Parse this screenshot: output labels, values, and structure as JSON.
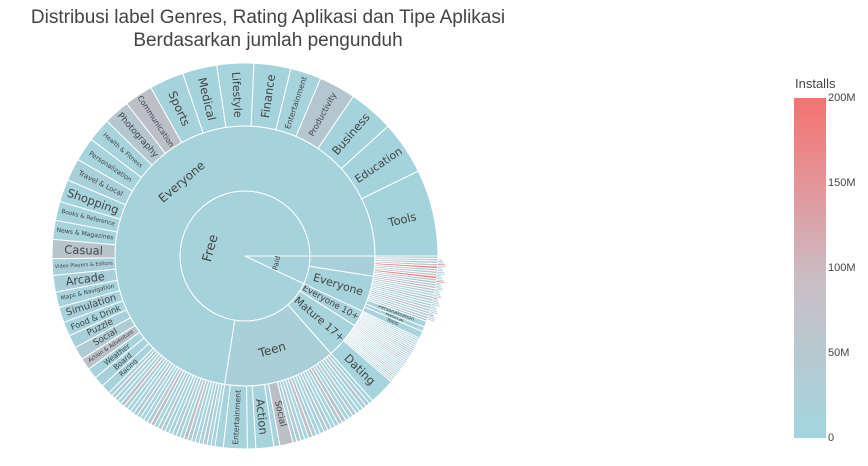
{
  "title_line1": "Distribusi label Genres, Rating Aplikasi dan Tipe Aplikasi",
  "title_line2": "Berdasarkan jumlah pengunduh",
  "colors": {
    "low": "#a3d5df",
    "mid": "#c0bcc4",
    "high": "#f87171"
  },
  "chart_data": {
    "type": "sunburst",
    "value_label": "Installs",
    "colorbar": {
      "title": "Installs",
      "range": [
        0,
        200000000
      ],
      "ticks": [
        "0",
        "50M",
        "100M",
        "150M",
        "200M"
      ]
    },
    "root": [
      {
        "name": "Free",
        "share": 0.93,
        "color": 0.06,
        "children": [
          {
            "name": "Everyone",
            "share": 0.725,
            "color": 0.06,
            "children": [
              {
                "name": "Tools",
                "share": 0.073,
                "color": 0.04
              },
              {
                "name": "Education",
                "share": 0.045,
                "color": 0.04
              },
              {
                "name": "Business",
                "share": 0.038,
                "color": 0.04
              },
              {
                "name": "Productivity",
                "share": 0.031,
                "color": 0.3
              },
              {
                "name": "Entertainment",
                "share": 0.026,
                "color": 0.05
              },
              {
                "name": "Finance",
                "share": 0.031,
                "color": 0.04
              },
              {
                "name": "Lifestyle",
                "share": 0.031,
                "color": 0.05
              },
              {
                "name": "Medical",
                "share": 0.029,
                "color": 0.04
              },
              {
                "name": "Sports",
                "share": 0.029,
                "color": 0.06
              },
              {
                "name": "Communication",
                "share": 0.024,
                "color": 0.45
              },
              {
                "name": "Photography",
                "share": 0.022,
                "color": 0.3
              },
              {
                "name": "Health & Fitness",
                "share": 0.02,
                "color": 0.05
              },
              {
                "name": "Personalization",
                "share": 0.02,
                "color": 0.05
              },
              {
                "name": "Travel & Local",
                "share": 0.019,
                "color": 0.1
              },
              {
                "name": "Shopping",
                "share": 0.019,
                "color": 0.05
              },
              {
                "name": "Books & Reference",
                "share": 0.016,
                "color": 0.05
              },
              {
                "name": "News & Magazines",
                "share": 0.016,
                "color": 0.05
              },
              {
                "name": "Casual",
                "share": 0.016,
                "color": 0.35
              },
              {
                "name": "Video Players & Editors",
                "share": 0.014,
                "color": 0.1
              },
              {
                "name": "Arcade",
                "share": 0.014,
                "color": 0.1
              },
              {
                "name": "Maps & Navigation",
                "share": 0.013,
                "color": 0.05
              },
              {
                "name": "Simulation",
                "share": 0.013,
                "color": 0.08
              },
              {
                "name": "Food & Drink",
                "share": 0.012,
                "color": 0.05
              },
              {
                "name": "Puzzle",
                "share": 0.011,
                "color": 0.1
              },
              {
                "name": "Social",
                "share": 0.011,
                "color": 0.2
              },
              {
                "name": "Action & Adventure",
                "share": 0.01,
                "color": 0.4
              },
              {
                "name": "Weather",
                "share": 0.009,
                "color": 0.05
              },
              {
                "name": "Board",
                "share": 0.009,
                "color": 0.08
              },
              {
                "name": "Racing",
                "share": 0.008,
                "color": 0.05
              },
              {
                "name": "",
                "share": 0.1,
                "color": 0.1,
                "many": 30
              }
            ]
          },
          {
            "name": "Teen",
            "share": 0.14,
            "color": 0.12,
            "children": [
              {
                "name": "",
                "share": 0.007,
                "color": 0.05
              },
              {
                "name": "Entertainment",
                "share": 0.02,
                "color": 0.05
              },
              {
                "name": "",
                "share": 0.007,
                "color": 0.05
              },
              {
                "name": "Action",
                "share": 0.015,
                "color": 0.05
              },
              {
                "name": "",
                "share": 0.005,
                "color": 0.05
              },
              {
                "name": "Social",
                "share": 0.011,
                "color": 0.45
              },
              {
                "name": "",
                "share": 0.075,
                "color": 0.1,
                "many": 22
              }
            ]
          },
          {
            "name": "Mature 17+",
            "share": 0.045,
            "color": 0.05,
            "children": [
              {
                "name": "Dating",
                "share": 0.022,
                "color": 0.05
              },
              {
                "name": "",
                "share": 0.023,
                "color": 0.1,
                "many": 14
              }
            ]
          },
          {
            "name": "Everyone 10+",
            "share": 0.02,
            "color": 0.08,
            "children": [
              {
                "name": "",
                "share": 0.02,
                "color": 0.15,
                "many": 12
              }
            ]
          }
        ]
      },
      {
        "name": "Paid",
        "share": 0.07,
        "color": 0.07,
        "children": [
          {
            "name": "Everyone",
            "share": 0.045,
            "color": 0.06,
            "children": [
              {
                "name": "Tools",
                "share": 0.006,
                "color": 0.05
              },
              {
                "name": "Medical",
                "share": 0.004,
                "color": 0.05
              },
              {
                "name": "Personalization",
                "share": 0.005,
                "color": 0.05
              },
              {
                "name": "",
                "share": 0.03,
                "color": 0.2,
                "many": 14
              }
            ]
          },
          {
            "name": "",
            "share": 0.025,
            "color": 0.1,
            "children": [
              {
                "name": "",
                "share": 0.025,
                "color": 0.3,
                "many": 12,
                "hot": true
              }
            ]
          }
        ]
      }
    ]
  }
}
